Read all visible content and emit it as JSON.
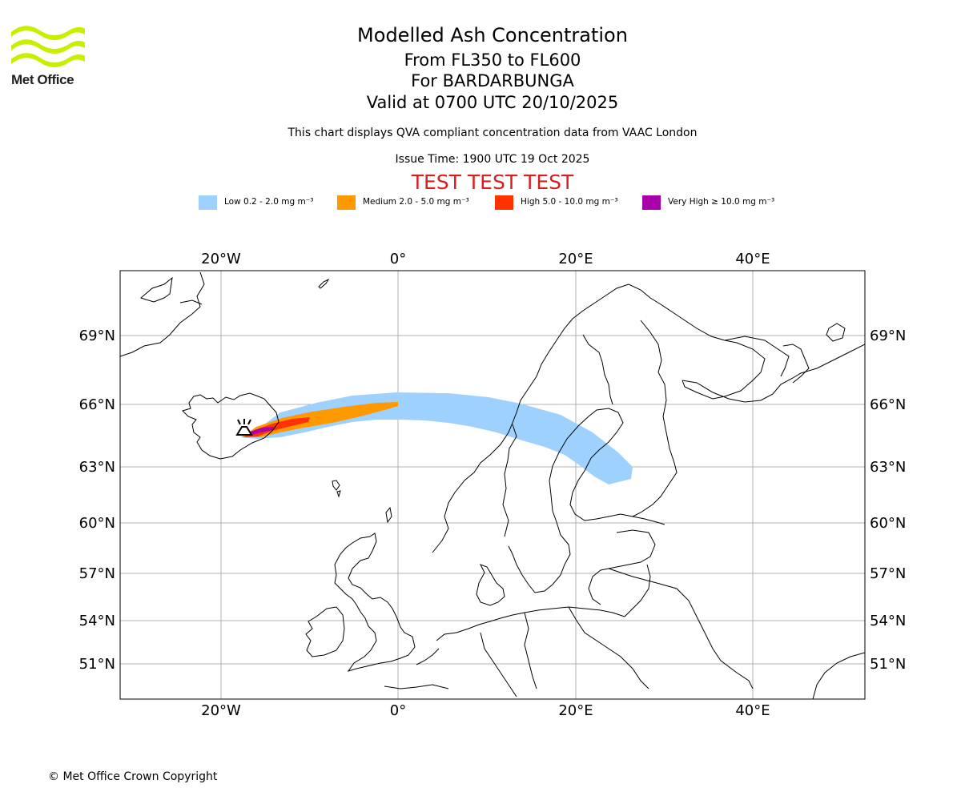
{
  "header": {
    "logo_text": "Met Office",
    "title": "Modelled Ash Concentration",
    "level_range": "From FL350 to FL600",
    "volcano": "For BARDARBUNGA",
    "valid_time": "Valid at 0700 UTC 20/10/2025",
    "description": "This chart displays QVA compliant concentration data from VAAC London",
    "issue_time": "Issue Time: 1900 UTC 19 Oct 2025",
    "test_banner": "TEST TEST TEST"
  },
  "legend": [
    {
      "label": "Low 0.2 - 2.0 mg m⁻³",
      "color": "#9fd1ff"
    },
    {
      "label": "Medium 2.0 - 5.0 mg m⁻³",
      "color": "#ff9900"
    },
    {
      "label": "High 5.0 - 10.0 mg m⁻³",
      "color": "#ff3300"
    },
    {
      "label": "Very High ≥ 10.0 mg m⁻³",
      "color": "#aa00aa"
    }
  ],
  "map": {
    "lon_labels": [
      "20°W",
      "0°",
      "20°E",
      "40°E"
    ],
    "lat_labels": [
      "69°N",
      "66°N",
      "63°N",
      "60°N",
      "57°N",
      "54°N",
      "51°N"
    ],
    "volcano_symbol": "volcano-icon"
  },
  "footer": {
    "copyright": "© Met Office Crown Copyright"
  }
}
